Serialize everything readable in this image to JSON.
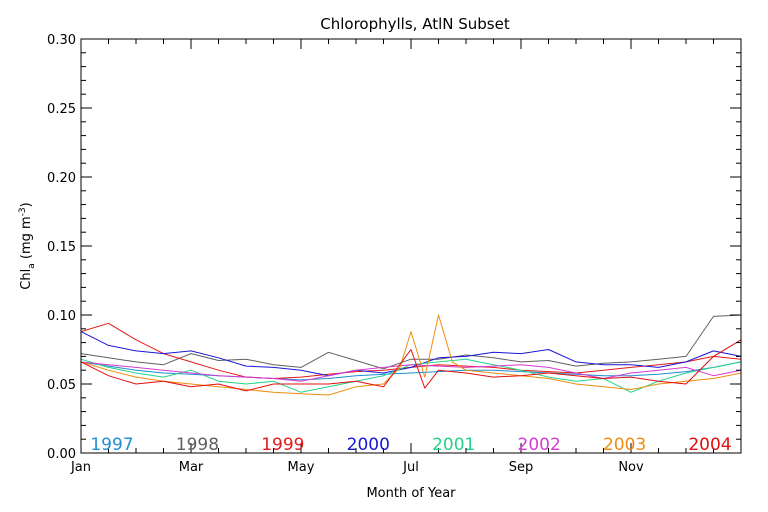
{
  "chart_data": {
    "type": "line",
    "title": "Chlorophylls, AtlN Subset",
    "xlabel": "Month of Year",
    "ylabel": {
      "main": "Chl",
      "sub": "a",
      "unit_open": " (mg m",
      "unit_sup": "-3",
      "unit_close": ")"
    },
    "xlim": [
      1,
      13
    ],
    "ylim": [
      0.0,
      0.3
    ],
    "x_ticks": [
      {
        "value": 1,
        "label": "Jan"
      },
      {
        "value": 3,
        "label": "Mar"
      },
      {
        "value": 5,
        "label": "May"
      },
      {
        "value": 7,
        "label": "Jul"
      },
      {
        "value": 9,
        "label": "Sep"
      },
      {
        "value": 11,
        "label": "Nov"
      }
    ],
    "x_minor_step": 0.5,
    "y_ticks": [
      {
        "value": 0.0,
        "label": "0.00"
      },
      {
        "value": 0.05,
        "label": "0.05"
      },
      {
        "value": 0.1,
        "label": "0.10"
      },
      {
        "value": 0.15,
        "label": "0.15"
      },
      {
        "value": 0.2,
        "label": "0.20"
      },
      {
        "value": 0.25,
        "label": "0.25"
      },
      {
        "value": 0.3,
        "label": "0.30"
      }
    ],
    "y_minor_step": 0.01,
    "grid": false,
    "legend_placement": "bottom inside plot",
    "series": [
      {
        "name": "1997",
        "color": "#1e8fd0",
        "x": [
          1.0,
          1.5,
          2.0,
          2.5,
          3.0,
          3.5,
          4.0,
          4.5,
          5.0,
          5.5,
          6.0,
          6.5,
          7.0,
          7.5,
          8.0,
          8.5,
          9.0,
          9.5,
          10.0,
          10.5,
          11.0,
          11.5,
          12.0,
          12.5,
          13.0
        ],
        "y": [
          0.066,
          0.063,
          0.06,
          0.058,
          0.057,
          0.056,
          0.055,
          0.054,
          0.053,
          0.054,
          0.056,
          0.057,
          0.058,
          0.059,
          0.06,
          0.06,
          0.059,
          0.058,
          0.057,
          0.056,
          0.056,
          0.057,
          0.059,
          0.062,
          0.066
        ]
      },
      {
        "name": "1998",
        "color": "#606060",
        "x": [
          1.0,
          1.5,
          2.0,
          2.5,
          3.0,
          3.5,
          4.0,
          4.5,
          5.0,
          5.5,
          6.0,
          6.5,
          7.0,
          7.5,
          8.0,
          8.5,
          9.0,
          9.5,
          10.0,
          10.5,
          11.0,
          11.5,
          12.0,
          12.5,
          13.0
        ],
        "y": [
          0.072,
          0.069,
          0.066,
          0.064,
          0.072,
          0.067,
          0.068,
          0.064,
          0.062,
          0.073,
          0.067,
          0.061,
          0.068,
          0.068,
          0.071,
          0.069,
          0.066,
          0.067,
          0.063,
          0.065,
          0.066,
          0.068,
          0.07,
          0.099,
          0.1
        ]
      },
      {
        "name": "1999",
        "color": "#e31a1a",
        "x": [
          1.0,
          1.5,
          2.0,
          2.5,
          3.0,
          3.5,
          4.0,
          4.5,
          5.0,
          5.5,
          6.0,
          6.5,
          7.0,
          7.5,
          8.0,
          8.5,
          9.0,
          9.5,
          10.0,
          10.5,
          11.0,
          11.5,
          12.0,
          12.5,
          13.0
        ],
        "y": [
          0.088,
          0.094,
          0.082,
          0.072,
          0.066,
          0.06,
          0.055,
          0.054,
          0.055,
          0.057,
          0.059,
          0.06,
          0.062,
          0.064,
          0.063,
          0.062,
          0.06,
          0.059,
          0.058,
          0.06,
          0.062,
          0.064,
          0.066,
          0.07,
          0.068
        ]
      },
      {
        "name": "2000",
        "color": "#1818d8",
        "x": [
          1.0,
          1.5,
          2.0,
          2.5,
          3.0,
          3.5,
          4.0,
          4.5,
          5.0,
          5.5,
          6.0,
          6.5,
          7.0,
          7.5,
          8.0,
          8.5,
          9.0,
          9.5,
          10.0,
          10.5,
          11.0,
          11.5,
          12.0,
          12.5,
          13.0
        ],
        "y": [
          0.088,
          0.078,
          0.074,
          0.072,
          0.074,
          0.069,
          0.063,
          0.062,
          0.06,
          0.056,
          0.06,
          0.058,
          0.062,
          0.069,
          0.07,
          0.073,
          0.072,
          0.075,
          0.066,
          0.064,
          0.064,
          0.062,
          0.066,
          0.074,
          0.07
        ]
      },
      {
        "name": "2001",
        "color": "#22d48a",
        "x": [
          1.0,
          1.5,
          2.0,
          2.5,
          3.0,
          3.5,
          4.0,
          4.5,
          5.0,
          5.5,
          6.0,
          6.5,
          7.0,
          7.5,
          8.0,
          8.5,
          9.0,
          9.5,
          10.0,
          10.5,
          11.0,
          11.5,
          12.0,
          12.5,
          13.0
        ],
        "y": [
          0.068,
          0.062,
          0.058,
          0.055,
          0.06,
          0.052,
          0.05,
          0.052,
          0.044,
          0.048,
          0.052,
          0.056,
          0.064,
          0.066,
          0.068,
          0.064,
          0.06,
          0.055,
          0.052,
          0.054,
          0.044,
          0.052,
          0.058,
          0.062,
          0.066
        ]
      },
      {
        "name": "2002",
        "color": "#d63ad6",
        "x": [
          1.0,
          1.5,
          2.0,
          2.5,
          3.0,
          3.5,
          4.0,
          4.5,
          5.0,
          5.5,
          6.0,
          6.5,
          7.0,
          7.5,
          8.0,
          8.5,
          9.0,
          9.5,
          10.0,
          10.5,
          11.0,
          11.5,
          12.0,
          12.5,
          13.0
        ],
        "y": [
          0.066,
          0.064,
          0.062,
          0.06,
          0.058,
          0.056,
          0.055,
          0.054,
          0.052,
          0.056,
          0.06,
          0.062,
          0.064,
          0.063,
          0.062,
          0.063,
          0.064,
          0.062,
          0.058,
          0.054,
          0.058,
          0.06,
          0.062,
          0.056,
          0.06
        ]
      },
      {
        "name": "2003",
        "color": "#f08c10",
        "x": [
          1.0,
          1.5,
          2.0,
          2.5,
          3.0,
          3.5,
          4.0,
          4.5,
          5.0,
          5.5,
          6.0,
          6.5,
          6.8,
          7.0,
          7.25,
          7.5,
          7.75,
          8.0,
          8.5,
          9.0,
          9.5,
          10.0,
          10.5,
          11.0,
          11.5,
          12.0,
          12.5,
          13.0
        ],
        "y": [
          0.066,
          0.06,
          0.055,
          0.052,
          0.05,
          0.048,
          0.046,
          0.044,
          0.043,
          0.042,
          0.048,
          0.05,
          0.062,
          0.088,
          0.055,
          0.1,
          0.066,
          0.06,
          0.058,
          0.056,
          0.054,
          0.05,
          0.048,
          0.046,
          0.05,
          0.052,
          0.054,
          0.058
        ]
      },
      {
        "name": "2004",
        "color": "#e01010",
        "x": [
          1.0,
          1.5,
          2.0,
          2.5,
          3.0,
          3.5,
          4.0,
          4.5,
          5.0,
          5.5,
          6.0,
          6.5,
          7.0,
          7.25,
          7.5,
          8.0,
          8.5,
          9.0,
          9.5,
          10.0,
          10.5,
          11.0,
          11.5,
          12.0,
          12.5,
          13.0
        ],
        "y": [
          0.066,
          0.056,
          0.05,
          0.052,
          0.048,
          0.05,
          0.045,
          0.05,
          0.05,
          0.05,
          0.052,
          0.048,
          0.075,
          0.047,
          0.06,
          0.058,
          0.055,
          0.056,
          0.058,
          0.056,
          0.054,
          0.055,
          0.052,
          0.05,
          0.07,
          0.082
        ]
      }
    ]
  }
}
